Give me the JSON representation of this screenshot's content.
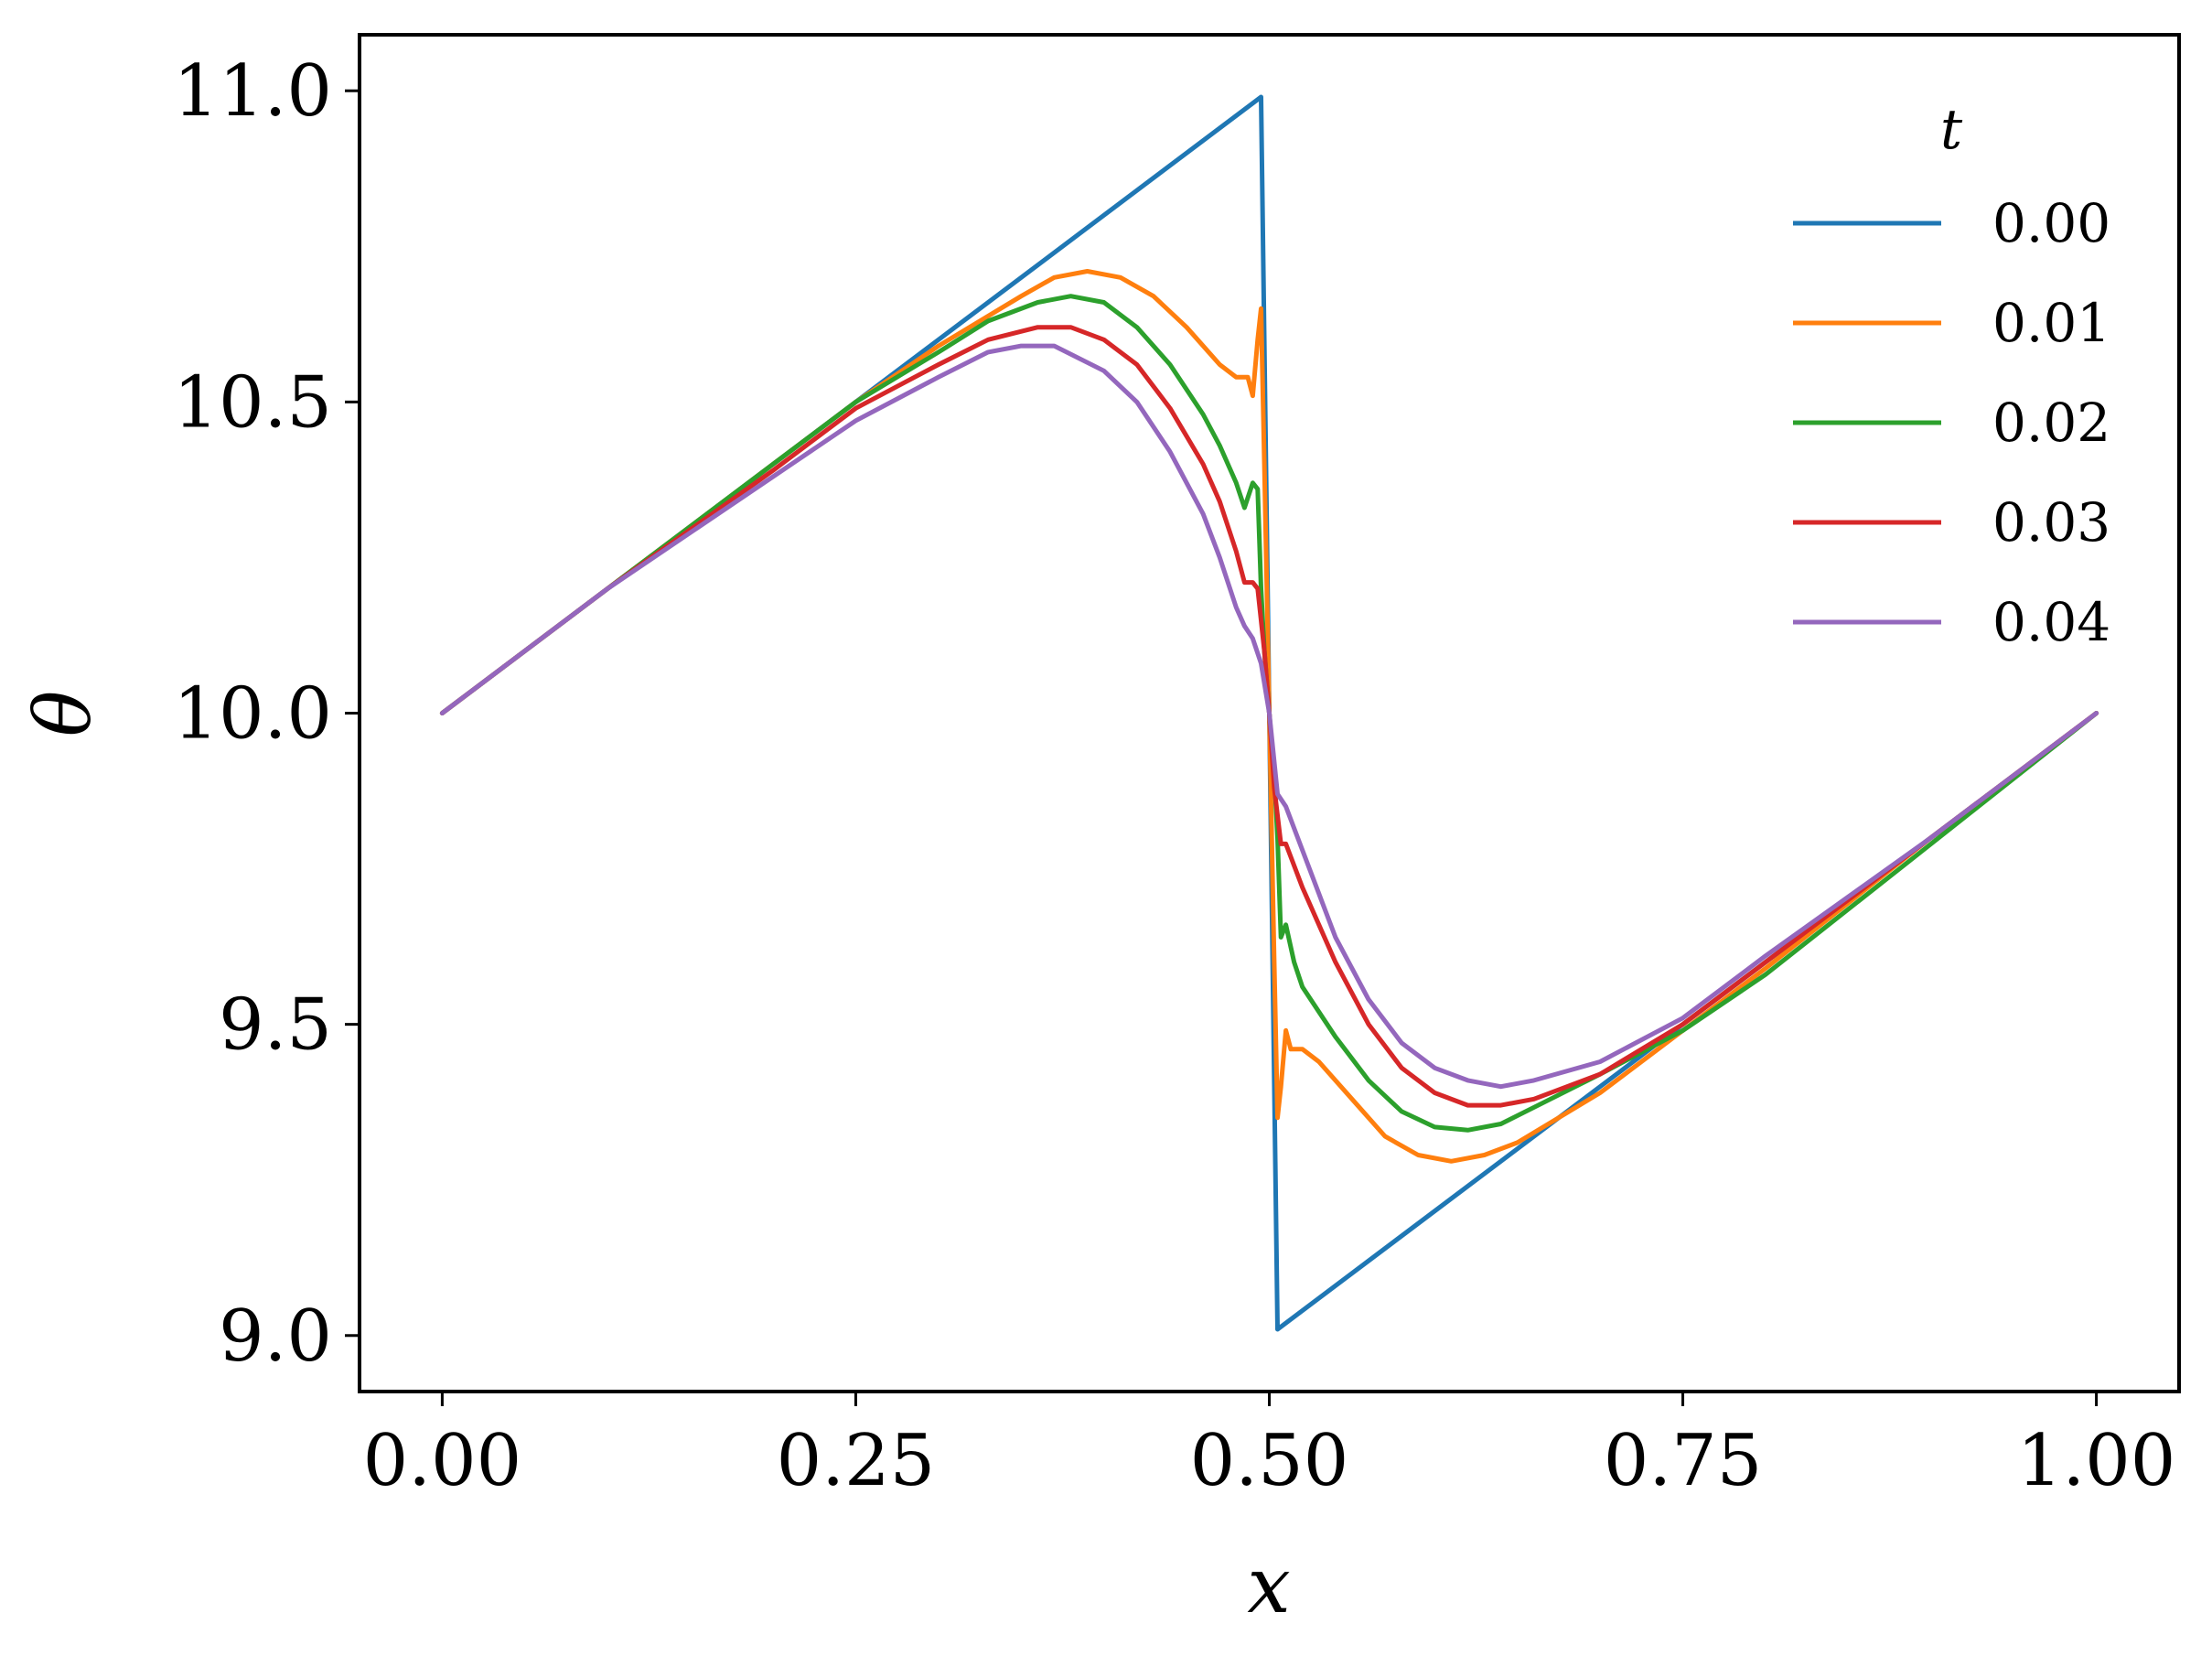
{
  "chart_data": {
    "type": "line",
    "title": "",
    "xlabel": "x",
    "ylabel": "θ",
    "xlim": [
      -0.05,
      1.05
    ],
    "ylim": [
      8.91,
      11.09
    ],
    "xticks": [
      0.0,
      0.25,
      0.5,
      0.75,
      1.0
    ],
    "xtick_labels": [
      "0.00",
      "0.25",
      "0.50",
      "0.75",
      "1.00"
    ],
    "yticks": [
      9.0,
      9.5,
      10.0,
      10.5,
      11.0
    ],
    "ytick_labels": [
      "9.0",
      "9.5",
      "10.0",
      "10.5",
      "11.0"
    ],
    "grid": false,
    "legend": {
      "title": "t",
      "position": "top-right"
    },
    "series": [
      {
        "name": "0.00",
        "color": "#1f77b4",
        "x": [
          0.0,
          0.495,
          0.505,
          1.0
        ],
        "y": [
          10.0,
          10.99,
          9.01,
          10.0
        ]
      },
      {
        "name": "0.01",
        "color": "#ff7f0e",
        "x": [
          0.0,
          0.1,
          0.2,
          0.25,
          0.3,
          0.35,
          0.37,
          0.39,
          0.41,
          0.43,
          0.45,
          0.47,
          0.48,
          0.487,
          0.49,
          0.493,
          0.495,
          0.497,
          0.5,
          0.503,
          0.505,
          0.507,
          0.51,
          0.513,
          0.52,
          0.53,
          0.55,
          0.57,
          0.59,
          0.61,
          0.63,
          0.65,
          0.7,
          0.75,
          0.8,
          0.9,
          1.0
        ],
        "y": [
          10.0,
          10.2,
          10.4,
          10.5,
          10.59,
          10.67,
          10.7,
          10.71,
          10.7,
          10.67,
          10.62,
          10.56,
          10.54,
          10.54,
          10.51,
          10.6,
          10.65,
          10.4,
          10.0,
          9.6,
          9.35,
          9.4,
          9.49,
          9.46,
          9.46,
          9.44,
          9.38,
          9.32,
          9.29,
          9.28,
          9.29,
          9.31,
          9.39,
          9.49,
          9.59,
          9.8,
          10.0
        ]
      },
      {
        "name": "0.02",
        "color": "#2ca02c",
        "x": [
          0.0,
          0.1,
          0.2,
          0.25,
          0.3,
          0.33,
          0.36,
          0.38,
          0.4,
          0.42,
          0.44,
          0.46,
          0.47,
          0.48,
          0.485,
          0.49,
          0.493,
          0.495,
          0.497,
          0.5,
          0.503,
          0.505,
          0.507,
          0.51,
          0.515,
          0.52,
          0.54,
          0.56,
          0.58,
          0.6,
          0.62,
          0.64,
          0.67,
          0.7,
          0.75,
          0.8,
          0.9,
          1.0
        ],
        "y": [
          10.0,
          10.2,
          10.4,
          10.5,
          10.58,
          10.63,
          10.66,
          10.67,
          10.66,
          10.62,
          10.56,
          10.48,
          10.43,
          10.37,
          10.33,
          10.37,
          10.36,
          10.2,
          10.1,
          10.0,
          9.9,
          9.8,
          9.64,
          9.66,
          9.6,
          9.56,
          9.48,
          9.41,
          9.36,
          9.335,
          9.33,
          9.34,
          9.38,
          9.42,
          9.49,
          9.58,
          9.79,
          10.0
        ]
      },
      {
        "name": "0.03",
        "color": "#d62728",
        "x": [
          0.0,
          0.1,
          0.2,
          0.25,
          0.3,
          0.33,
          0.36,
          0.38,
          0.4,
          0.42,
          0.44,
          0.46,
          0.47,
          0.48,
          0.485,
          0.49,
          0.493,
          0.497,
          0.5,
          0.503,
          0.507,
          0.51,
          0.52,
          0.54,
          0.56,
          0.58,
          0.6,
          0.62,
          0.64,
          0.66,
          0.7,
          0.75,
          0.8,
          0.9,
          1.0
        ],
        "y": [
          10.0,
          10.2,
          10.39,
          10.49,
          10.56,
          10.6,
          10.62,
          10.62,
          10.6,
          10.56,
          10.49,
          10.4,
          10.34,
          10.26,
          10.21,
          10.21,
          10.2,
          10.1,
          10.0,
          9.88,
          9.79,
          9.79,
          9.72,
          9.6,
          9.5,
          9.43,
          9.39,
          9.37,
          9.37,
          9.38,
          9.42,
          9.5,
          9.6,
          9.8,
          10.0
        ]
      },
      {
        "name": "0.04",
        "color": "#9467bd",
        "x": [
          0.0,
          0.1,
          0.2,
          0.25,
          0.3,
          0.33,
          0.35,
          0.37,
          0.4,
          0.42,
          0.44,
          0.46,
          0.47,
          0.48,
          0.485,
          0.49,
          0.495,
          0.5,
          0.505,
          0.51,
          0.52,
          0.54,
          0.56,
          0.58,
          0.6,
          0.62,
          0.64,
          0.66,
          0.7,
          0.75,
          0.8,
          0.9,
          1.0
        ],
        "y": [
          10.0,
          10.2,
          10.38,
          10.47,
          10.54,
          10.58,
          10.59,
          10.59,
          10.55,
          10.5,
          10.42,
          10.32,
          10.25,
          10.17,
          10.14,
          10.12,
          10.08,
          10.0,
          9.87,
          9.85,
          9.78,
          9.64,
          9.54,
          9.47,
          9.43,
          9.41,
          9.4,
          9.41,
          9.44,
          9.51,
          9.61,
          9.8,
          10.0
        ]
      }
    ]
  }
}
